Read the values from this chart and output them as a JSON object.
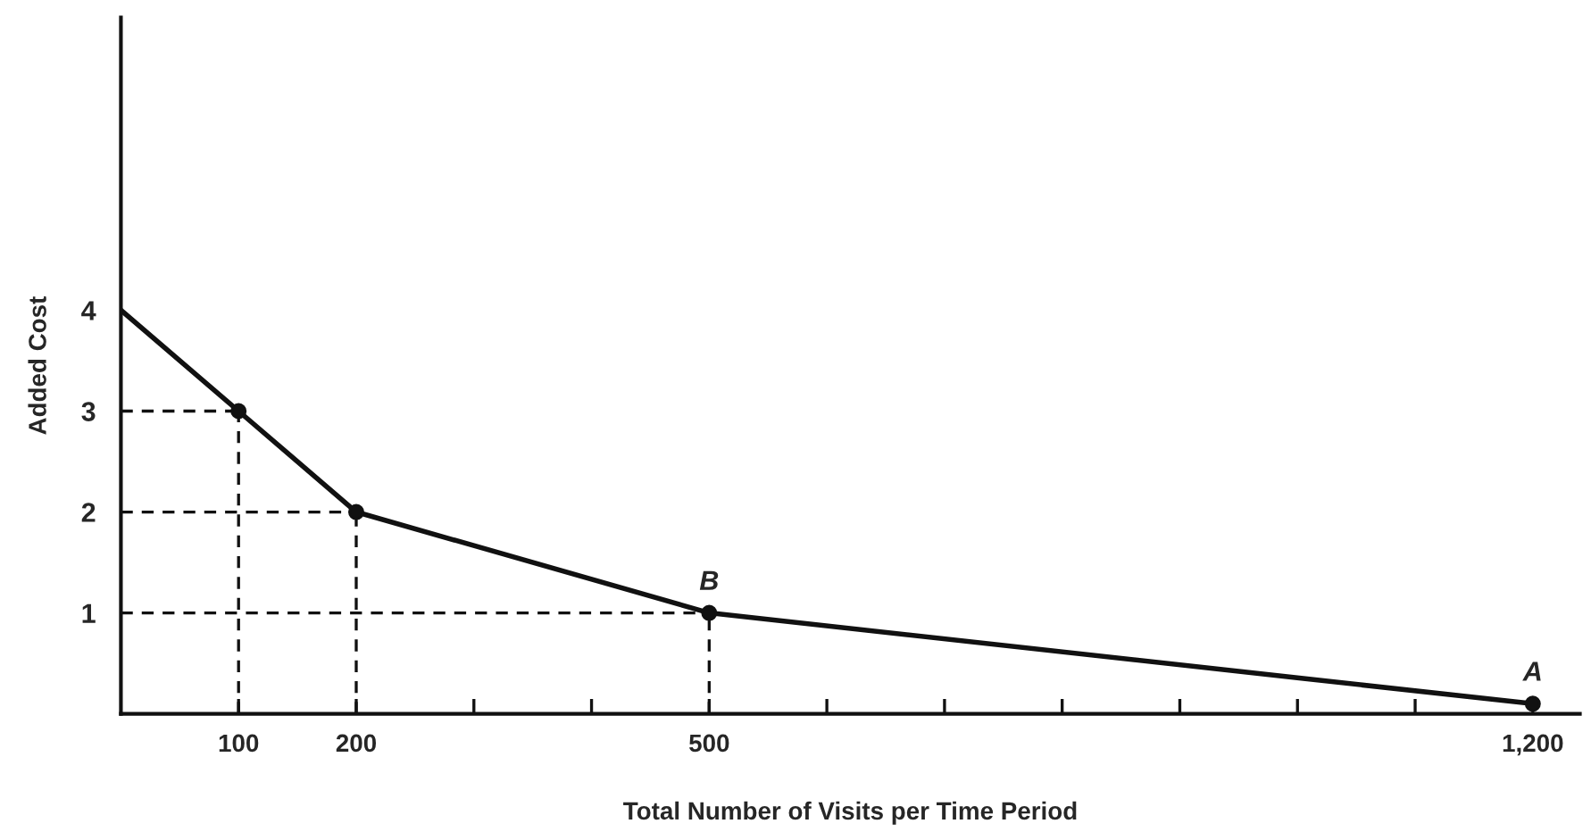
{
  "chart_data": {
    "type": "line",
    "xlabel": "Total Number of Visits per Time Period",
    "ylabel": "Added Cost",
    "xlim": [
      0,
      1240
    ],
    "ylim": [
      0,
      6.9
    ],
    "xticks": [
      100,
      200,
      {
        "value": 300,
        "label": null
      },
      {
        "value": 400,
        "label": null
      },
      500,
      {
        "value": 600,
        "label": null
      },
      {
        "value": 700,
        "label": null
      },
      {
        "value": 800,
        "label": null
      },
      {
        "value": 900,
        "label": null
      },
      {
        "value": 1000,
        "label": null
      },
      {
        "value": 1100,
        "label": null
      },
      {
        "value": 1200,
        "label": "1,200"
      }
    ],
    "yticks": [
      1,
      2,
      3,
      4
    ],
    "grid": false,
    "legend": false,
    "series": [
      {
        "color": "#111111",
        "x": [
          0,
          100,
          200,
          500,
          1200
        ],
        "values": [
          4,
          3,
          2,
          1,
          0.1
        ]
      },
      {
        "type": "scatter",
        "color": "#111111",
        "x": [
          100,
          200,
          500,
          1200
        ],
        "values": [
          3,
          2,
          1,
          0.1
        ]
      }
    ],
    "ref_lines": [
      {
        "axis": "y",
        "value": 3,
        "line_style": "dashed",
        "color": "#111111"
      },
      {
        "axis": "y",
        "value": 2,
        "line_style": "dashed",
        "color": "#111111"
      },
      {
        "axis": "y",
        "value": 1,
        "line_style": "dashed",
        "color": "#111111"
      },
      {
        "axis": "x",
        "value": 100,
        "line_style": "dashed",
        "color": "#111111"
      },
      {
        "axis": "x",
        "value": 200,
        "line_style": "dashed",
        "color": "#111111"
      },
      {
        "axis": "x",
        "value": 500,
        "line_style": "dashed",
        "color": "#111111"
      }
    ],
    "annotations": [
      {
        "text": "B",
        "x": 500,
        "y": 1
      },
      {
        "text": "A",
        "x": 1200,
        "y": 0.1
      }
    ]
  }
}
